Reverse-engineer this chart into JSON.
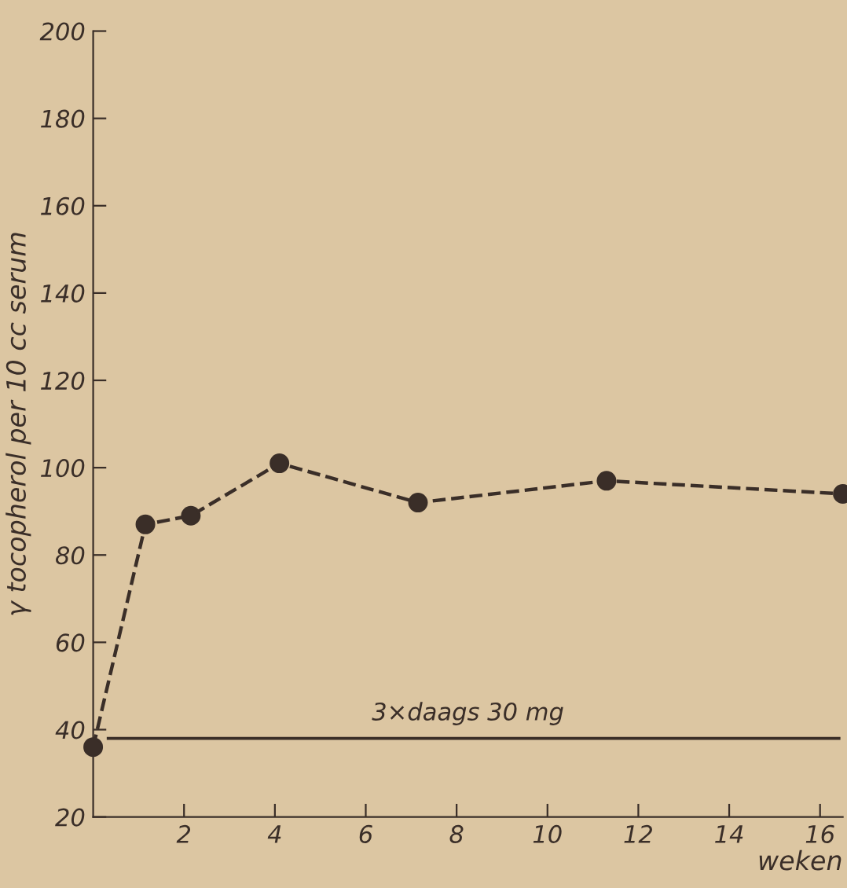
{
  "chart_data": {
    "type": "line",
    "xlabel": "weken",
    "ylabel": "γ tocopherol per 10 cc serum",
    "x": [
      0,
      1.15,
      2.15,
      4.1,
      7.15,
      11.3,
      16.5
    ],
    "series": [
      {
        "color": "#3a2e28",
        "values": [
          36,
          87,
          89,
          101,
          92,
          97,
          94
        ]
      }
    ],
    "xlim": [
      0,
      16.5
    ],
    "ylim": [
      20,
      200
    ],
    "xticks": [
      2,
      4,
      6,
      8,
      10,
      12,
      14,
      16
    ],
    "yticks": [
      20,
      40,
      60,
      80,
      100,
      120,
      140,
      160,
      180,
      200
    ],
    "marker": "circle",
    "line_style": "dashed",
    "grid": false,
    "legend": false,
    "ref_lines": [
      {
        "axis": "y",
        "value": 38,
        "label": "3×daags 30 mg",
        "line_style": "solid"
      }
    ]
  }
}
